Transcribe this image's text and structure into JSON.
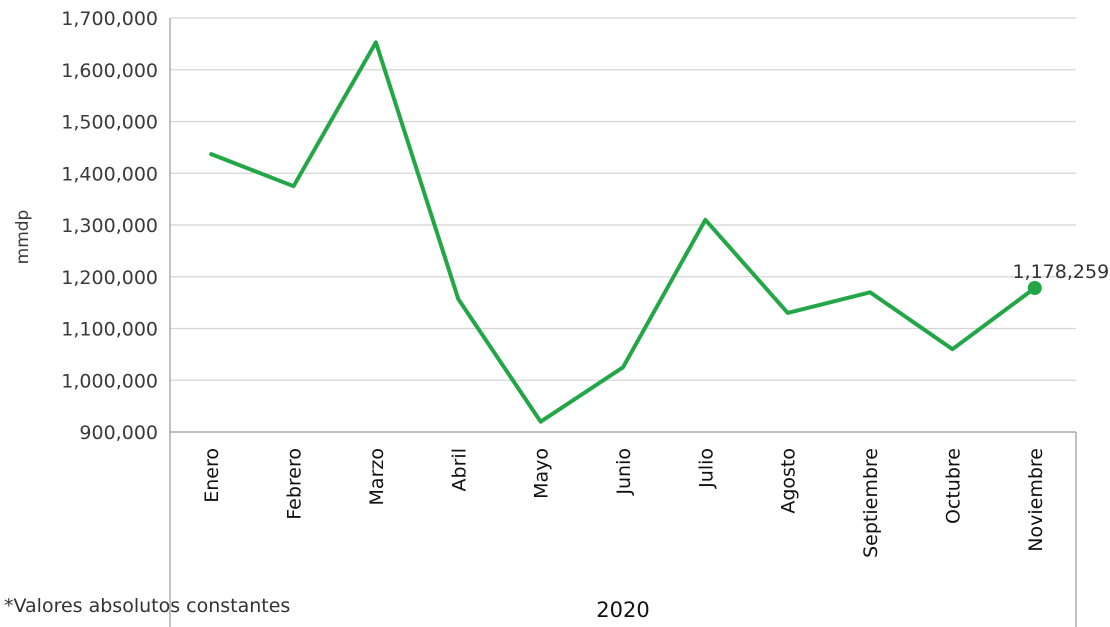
{
  "chart_data": {
    "type": "line",
    "categories": [
      "Enero",
      "Febrero",
      "Marzo",
      "Abril",
      "Mayo",
      "Junio",
      "Julio",
      "Agosto",
      "Septiembre",
      "Octubre",
      "Noviembre"
    ],
    "series": [
      {
        "values": [
          1437000,
          1375000,
          1653000,
          1157000,
          920000,
          1025000,
          1310000,
          1130000,
          1170000,
          1060000,
          1178259
        ],
        "color": "#22a646"
      }
    ],
    "ylim": [
      900000,
      1700000
    ],
    "y_ticks": [
      "900,000",
      "1,000,000",
      "1,100,000",
      "1,200,000",
      "1,300,000",
      "1,400,000",
      "1,500,000",
      "1,600,000",
      "1,700,000"
    ],
    "ylabel": "mmdp",
    "xlabel": "2020",
    "grid": true,
    "data_labels": [
      {
        "category": "Noviembre",
        "text": "1,178,259"
      }
    ]
  },
  "footnote": "*Valores absolutos constantes"
}
